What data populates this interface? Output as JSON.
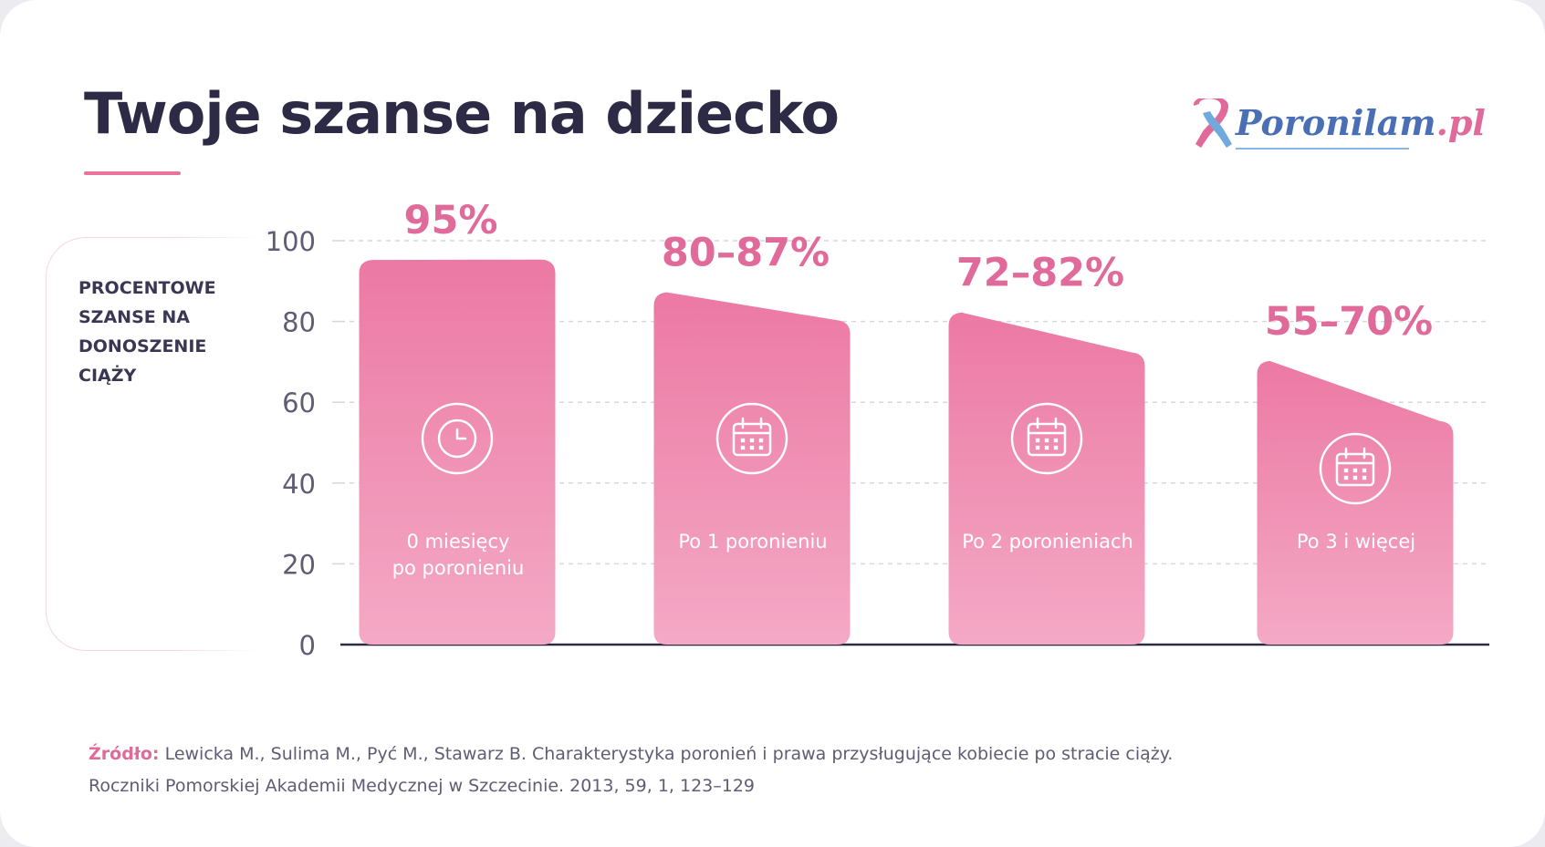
{
  "title": "Twoje szanse na dziecko",
  "logo": {
    "brand": "Poronilam",
    "tld": ".pl",
    "icon": "awareness-ribbon-icon"
  },
  "y_axis_label": "PROCENTOWE SZANSE NA DONOSZENIE CIĄŻY",
  "colors": {
    "title": "#2d2a46",
    "accent": "#e06a99",
    "bar_top": "#ec79a3",
    "bar_bottom": "#f4a9c5",
    "grid": "#d8d6de",
    "axis": "#2d2a46"
  },
  "chart_data": {
    "type": "bar",
    "ylim": [
      0,
      100
    ],
    "yticks": [
      0,
      20,
      40,
      60,
      80,
      100
    ],
    "grid": true,
    "categories": [
      [
        "0 miesięcy",
        "po poronieniu"
      ],
      [
        "Po 1 poronieniu"
      ],
      [
        "Po 2 poronieniach"
      ],
      [
        "Po 3 i więcej"
      ]
    ],
    "ranges": [
      [
        95,
        95
      ],
      [
        80,
        87
      ],
      [
        72,
        82
      ],
      [
        55,
        70
      ]
    ],
    "value_labels": [
      "95%",
      "80–87%",
      "72–82%",
      "55–70%"
    ],
    "icons": [
      "clock-icon",
      "calendar-icon",
      "calendar-icon",
      "calendar-icon"
    ]
  },
  "source": {
    "label": "Źródło:",
    "line1": "Lewicka M., Sulima M., Pyć M., Stawarz B. Charakterystyka poronień i prawa przysługujące kobiecie po stracie ciąży.",
    "line2": "Roczniki Pomorskiej Akademii Medycznej w Szczecinie. 2013, 59, 1, 123–129"
  }
}
